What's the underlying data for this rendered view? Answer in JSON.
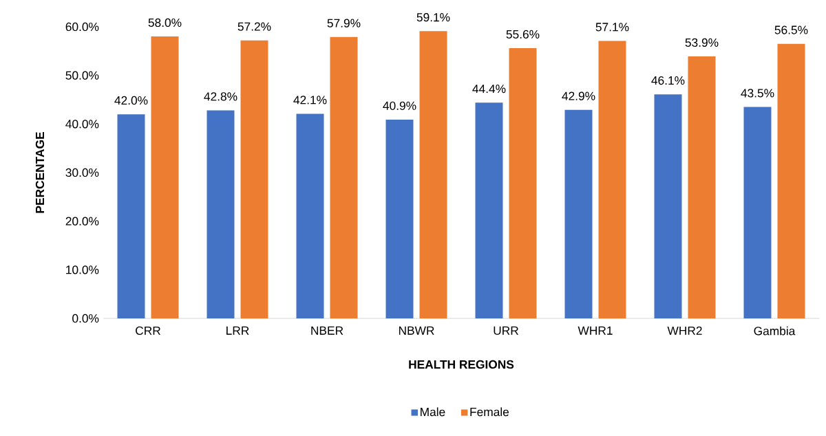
{
  "chart_data": {
    "type": "bar",
    "xlabel": "HEALTH REGIONS",
    "ylabel": "PERCENTAGE",
    "categories": [
      "CRR",
      "LRR",
      "NBER",
      "NBWR",
      "URR",
      "WHR1",
      "WHR2",
      "Gambia"
    ],
    "series": [
      {
        "name": "Male",
        "color": "#4472c4",
        "values": [
          42.0,
          42.8,
          42.1,
          40.9,
          44.4,
          42.9,
          46.1,
          43.5
        ],
        "value_labels": [
          "42.0%",
          "42.8%",
          "42.1%",
          "40.9%",
          "44.4%",
          "42.9%",
          "46.1%",
          "43.5%"
        ]
      },
      {
        "name": "Female",
        "color": "#ed7d31",
        "values": [
          58.0,
          57.2,
          57.9,
          59.1,
          55.6,
          57.1,
          53.9,
          56.5
        ],
        "value_labels": [
          "58.0%",
          "57.2%",
          "57.9%",
          "59.1%",
          "55.6%",
          "57.1%",
          "53.9%",
          "56.5%"
        ]
      }
    ],
    "ylim": [
      0,
      60
    ],
    "yticks": [
      {
        "value": 0,
        "label": "0.0%"
      },
      {
        "value": 10,
        "label": "10.0%"
      },
      {
        "value": 20,
        "label": "20.0%"
      },
      {
        "value": 30,
        "label": "30.0%"
      },
      {
        "value": 40,
        "label": "40.0%"
      },
      {
        "value": 50,
        "label": "50.0%"
      },
      {
        "value": 60,
        "label": "60.0%"
      }
    ],
    "grid": false,
    "legend": "bottom"
  }
}
